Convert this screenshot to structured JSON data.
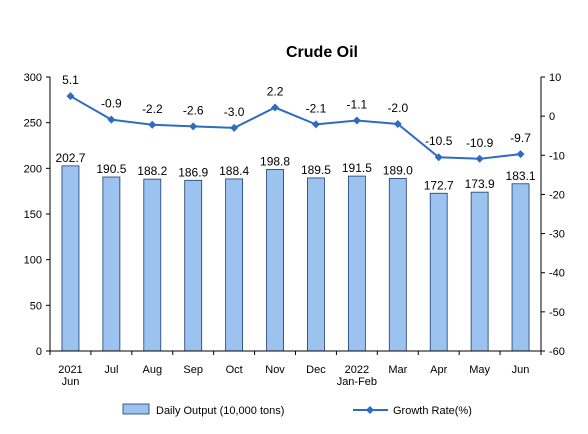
{
  "chart_data": {
    "type": "bar",
    "title": "Crude Oil",
    "categories": [
      [
        "2021",
        "Jun"
      ],
      [
        "Jul"
      ],
      [
        "Aug"
      ],
      [
        "Sep"
      ],
      [
        "Oct"
      ],
      [
        "Nov"
      ],
      [
        "Dec"
      ],
      [
        "2022",
        "Jan-Feb"
      ],
      [
        "Mar"
      ],
      [
        "Apr"
      ],
      [
        "May"
      ],
      [
        "Jun"
      ]
    ],
    "series": [
      {
        "name": "Daily Output (10,000 tons)",
        "kind": "bar",
        "axis": "left",
        "values": [
          202.7,
          190.5,
          188.2,
          186.9,
          188.4,
          198.8,
          189.5,
          191.5,
          189.0,
          172.7,
          173.9,
          183.1
        ],
        "labels": [
          "202.7",
          "190.5",
          "188.2",
          "186.9",
          "188.4",
          "198.8",
          "189.5",
          "191.5",
          "189.0",
          "172.7",
          "173.9",
          "183.1"
        ],
        "color": "#9cc3f0"
      },
      {
        "name": "Growth Rate(%)",
        "kind": "line",
        "axis": "right",
        "values": [
          5.1,
          -0.9,
          -2.2,
          -2.6,
          -3.0,
          2.2,
          -2.1,
          -1.1,
          -2.0,
          -10.5,
          -10.9,
          -9.7
        ],
        "labels": [
          "5.1",
          "-0.9",
          "-2.2",
          "-2.6",
          "-3.0",
          "2.2",
          "-2.1",
          "-1.1",
          "-2.0",
          "-10.5",
          "-10.9",
          "-9.7"
        ],
        "color": "#2f6bc0"
      }
    ],
    "y_left": {
      "lim": [
        0,
        300
      ],
      "ticks": [
        "0",
        "50",
        "100",
        "150",
        "200",
        "250",
        "300"
      ]
    },
    "y_right": {
      "lim": [
        -60,
        10
      ],
      "ticks": [
        "-60",
        "-50",
        "-40",
        "-30",
        "-20",
        "-10",
        "0",
        "10"
      ]
    },
    "grid": false,
    "legend": "bottom"
  }
}
